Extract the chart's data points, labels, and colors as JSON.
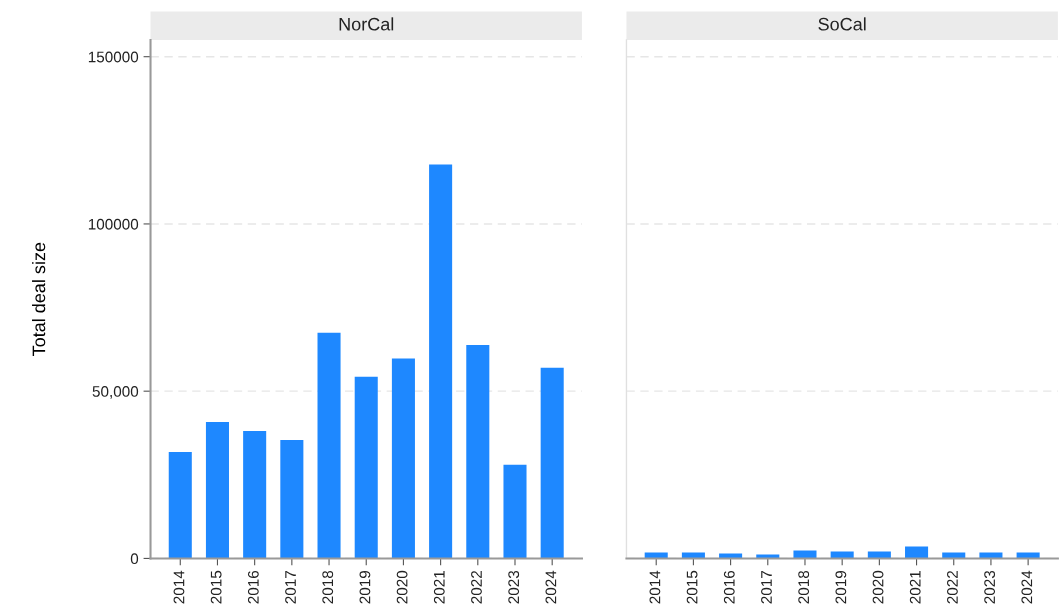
{
  "chart_data": [
    {
      "type": "bar",
      "title": "NorCal",
      "ylabel": "Total deal size",
      "categories": [
        "2014",
        "2015",
        "2016",
        "2017",
        "2018",
        "2019",
        "2020",
        "2021",
        "2022",
        "2023",
        "2024"
      ],
      "values": [
        31800,
        40800,
        38100,
        35400,
        67500,
        54300,
        59800,
        117800,
        63800,
        28000,
        57000
      ],
      "color": "#1e88ff",
      "ylim": [
        0,
        155000
      ],
      "yticks": [
        0,
        {
          "value": 50000,
          "label": "50,000"
        },
        100000,
        150000
      ],
      "grid": "y"
    },
    {
      "type": "bar",
      "title": "SoCal",
      "categories": [
        "2014",
        "2015",
        "2016",
        "2017",
        "2018",
        "2019",
        "2020",
        "2021",
        "2022",
        "2023",
        "2024"
      ],
      "values": [
        1800,
        1800,
        1500,
        1200,
        2400,
        2100,
        2100,
        3600,
        1800,
        1800,
        1800
      ],
      "color": "#1e88ff",
      "ylim": [
        0,
        155000
      ],
      "yticks": [
        0,
        50000,
        100000,
        150000
      ],
      "grid": "y",
      "tick_labels": "x"
    }
  ]
}
